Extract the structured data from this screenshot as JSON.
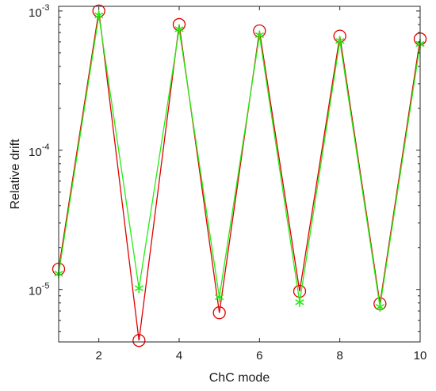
{
  "chart_data": {
    "type": "line",
    "title": "",
    "xlabel": "ChC mode",
    "ylabel": "Relative drift",
    "xlim": [
      1,
      10
    ],
    "ylim": [
      4.2e-06,
      0.00108
    ],
    "yscale": "log",
    "grid": false,
    "legend": "none",
    "x_ticks": [
      2,
      4,
      6,
      8,
      10
    ],
    "y_ticks": [
      {
        "value": 1e-05,
        "base": "10",
        "exp": "-5"
      },
      {
        "value": 0.0001,
        "base": "10",
        "exp": "-4"
      },
      {
        "value": 0.001,
        "base": "10",
        "exp": "-3"
      }
    ],
    "x": [
      1,
      2,
      3,
      4,
      5,
      6,
      7,
      8,
      9,
      10
    ],
    "series": [
      {
        "color": "#e00000",
        "marker": "circle",
        "values": [
          1.4e-05,
          0.001,
          4.3e-06,
          0.0008,
          6.8e-06,
          0.00072,
          9.7e-06,
          0.00066,
          7.9e-06,
          0.00063
        ]
      },
      {
        "color": "#22ee11",
        "marker": "asterisk",
        "values": [
          1.3e-05,
          0.00093,
          1.02e-05,
          0.00074,
          8.8e-06,
          0.00067,
          8.1e-06,
          0.00061,
          7.5e-06,
          0.00058
        ]
      }
    ]
  }
}
